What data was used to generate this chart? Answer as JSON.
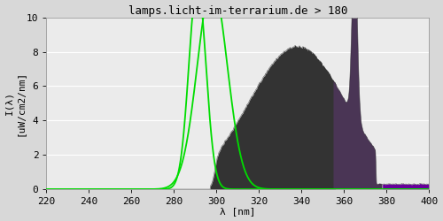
{
  "title": "lamps.licht-im-terrarium.de > 180",
  "xlabel": "λ [nm]",
  "ylabel_line1": "I(λ)",
  "ylabel_line2": "[uW/cm2/nm]",
  "xlim": [
    220,
    400
  ],
  "ylim": [
    0,
    10
  ],
  "xticks": [
    220,
    240,
    260,
    280,
    300,
    320,
    340,
    360,
    380,
    400
  ],
  "yticks": [
    0,
    2,
    4,
    6,
    8,
    10
  ],
  "bg_color": "#d8d8d8",
  "plot_bg_color": "#ebebeb",
  "title_fontsize": 9,
  "tick_fontsize": 8,
  "label_fontsize": 8,
  "spectrum_dark_color": "#333333",
  "spectrum_overlap_color": "#4a3555",
  "spectrum_purple_color": "#660099",
  "green_line_color": "#00dd00",
  "grid_color": "#ffffff",
  "spike_color": "#555555"
}
